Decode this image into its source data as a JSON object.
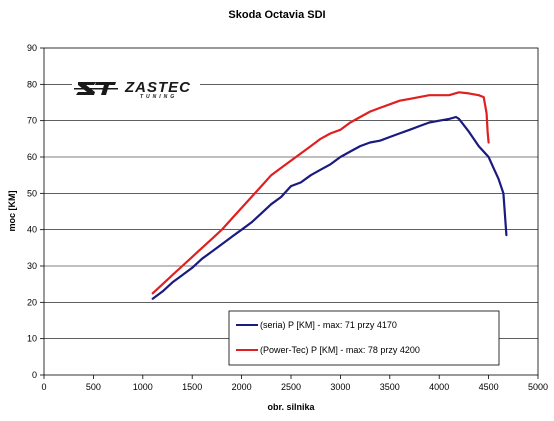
{
  "chart_data": {
    "type": "line",
    "title": "Skoda Octavia SDI",
    "xlabel": "obr. silnika",
    "ylabel": "moc [KM]",
    "xlim": [
      0,
      5000
    ],
    "ylim": [
      0,
      90
    ],
    "xticks": [
      0,
      500,
      1000,
      1500,
      2000,
      2500,
      3000,
      3500,
      4000,
      4500,
      5000
    ],
    "yticks": [
      0,
      10,
      20,
      30,
      40,
      50,
      60,
      70,
      80,
      90
    ],
    "grid": "horizontal",
    "legend_position": "bottom-right",
    "series": [
      {
        "name": "(seria) P [KM] - max: 71 przy 4170",
        "color": "#1a1a80",
        "x": [
          1100,
          1200,
          1300,
          1400,
          1500,
          1600,
          1700,
          1800,
          1900,
          2000,
          2100,
          2200,
          2300,
          2400,
          2500,
          2600,
          2700,
          2800,
          2900,
          3000,
          3100,
          3200,
          3300,
          3400,
          3500,
          3600,
          3700,
          3800,
          3900,
          4000,
          4100,
          4170,
          4200,
          4300,
          4400,
          4500,
          4550,
          4600,
          4650,
          4680
        ],
        "y": [
          21,
          23,
          25.5,
          27.5,
          29.5,
          32,
          34,
          36,
          38,
          40,
          42,
          44.5,
          47,
          49,
          52,
          53,
          55,
          56.5,
          58,
          60,
          61.5,
          63,
          64,
          64.5,
          65.5,
          66.5,
          67.5,
          68.5,
          69.5,
          70,
          70.5,
          71,
          70.5,
          67,
          63,
          60,
          57,
          54,
          50,
          38.5
        ]
      },
      {
        "name": "(Power-Tec) P [KM] - max: 78 przy 4200",
        "color": "#e02020",
        "x": [
          1100,
          1200,
          1300,
          1400,
          1500,
          1600,
          1700,
          1800,
          1900,
          2000,
          2100,
          2200,
          2300,
          2400,
          2500,
          2600,
          2700,
          2800,
          2900,
          3000,
          3100,
          3200,
          3300,
          3400,
          3500,
          3600,
          3700,
          3800,
          3900,
          4000,
          4100,
          4200,
          4300,
          4400,
          4450,
          4480,
          4490,
          4500
        ],
        "y": [
          22.5,
          25,
          27.5,
          30,
          32.5,
          35,
          37.5,
          40,
          43,
          46,
          49,
          52,
          55,
          57,
          59,
          61,
          63,
          65,
          66.5,
          67.5,
          69.5,
          71,
          72.5,
          73.5,
          74.5,
          75.5,
          76,
          76.5,
          77,
          77,
          77,
          77.8,
          77.5,
          77,
          76.5,
          72,
          67,
          64
        ]
      }
    ]
  },
  "logo": {
    "mark": "ZT",
    "name": "ZASTEC",
    "tagline": "TUNING"
  }
}
